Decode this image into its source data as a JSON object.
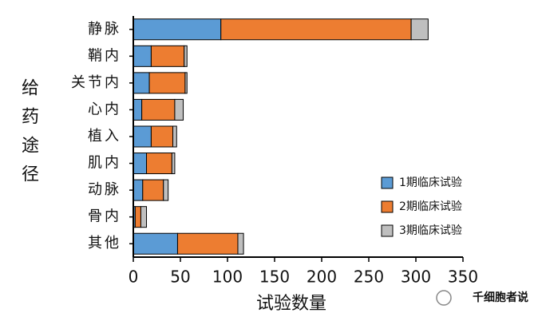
{
  "chart_data": {
    "type": "stacked_barh",
    "categories": [
      "静脉",
      "鞘内",
      "关节内",
      "心内",
      "植入",
      "肌内",
      "动脉",
      "骨内",
      "其他"
    ],
    "series": [
      {
        "name": "1期临床试验",
        "color": "#5b9bd5",
        "values": [
          93,
          19,
          17,
          9,
          19,
          14,
          10,
          2,
          47
        ]
      },
      {
        "name": "2期临床试验",
        "color": "#ed7d31",
        "values": [
          202,
          35,
          38,
          35,
          23,
          27,
          22,
          6,
          64
        ]
      },
      {
        "name": "3期临床试验",
        "color": "#bfbfbf",
        "values": [
          18,
          3,
          2,
          9,
          4,
          3,
          5,
          6,
          6
        ]
      }
    ],
    "xlim": [
      0,
      350
    ],
    "xticks": [
      0,
      50,
      100,
      150,
      200,
      250,
      300,
      350
    ],
    "xlabel": "试验数量",
    "ylabel": "给药途径",
    "legend": "right",
    "watermark": "千细胞者说"
  }
}
